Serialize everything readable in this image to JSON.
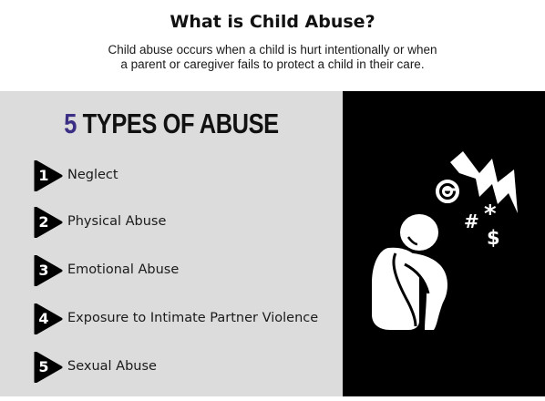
{
  "header": {
    "title": "What is Child Abuse?",
    "subtitle_line1": "Child abuse occurs when a child is hurt intentionally or when",
    "subtitle_line2": "a parent or caregiver fails to protect a child in their care."
  },
  "types": {
    "heading_number": "5",
    "heading_text": "TYPES OF ABUSE",
    "items": [
      {
        "number": "1",
        "label": "Neglect"
      },
      {
        "number": "2",
        "label": "Physical Abuse"
      },
      {
        "number": "3",
        "label": "Emotional Abuse"
      },
      {
        "number": "4",
        "label": "Exposure to Intimate Partner Violence"
      },
      {
        "number": "5",
        "label": "Sexual Abuse"
      }
    ]
  },
  "illustration": {
    "icon": "distressed-child-icon",
    "symbols": [
      "#",
      "*",
      "$"
    ]
  },
  "colors": {
    "accent": "#3b2f85",
    "panel_gray": "#dcdcdc",
    "panel_black": "#000000"
  }
}
